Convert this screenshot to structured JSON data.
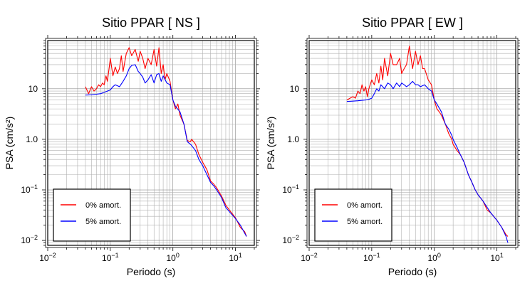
{
  "chart_data": [
    {
      "type": "line",
      "title": "Sitio PPAR [ NS ]",
      "xlabel": "Periodo (s)",
      "ylabel": "PSA (cm/s²)",
      "x_scale": "log",
      "y_scale": "log",
      "xlim": [
        0.01,
        20
      ],
      "ylim": [
        0.008,
        90
      ],
      "x_ticks": [
        {
          "value": 0.01,
          "base": "10",
          "exp": "−2"
        },
        {
          "value": 0.1,
          "base": "10",
          "exp": "−1"
        },
        {
          "value": 1,
          "base": "10",
          "exp": "0"
        },
        {
          "value": 10,
          "base": "10",
          "exp": "1"
        }
      ],
      "y_ticks": [
        {
          "value": 0.01,
          "base": "10",
          "exp": "−2"
        },
        {
          "value": 0.1,
          "base": "10",
          "exp": "−1"
        },
        {
          "value": 1,
          "base": "1.0",
          "exp": ""
        },
        {
          "value": 10,
          "base": "10",
          "exp": ""
        }
      ],
      "grid": true,
      "legend_position": "bottom-left",
      "series": [
        {
          "name": "0% amort.",
          "color": "#ff0000",
          "x": [
            0.04,
            0.045,
            0.05,
            0.055,
            0.06,
            0.065,
            0.07,
            0.075,
            0.08,
            0.085,
            0.09,
            0.1,
            0.11,
            0.12,
            0.13,
            0.14,
            0.15,
            0.16,
            0.18,
            0.2,
            0.22,
            0.25,
            0.28,
            0.3,
            0.33,
            0.36,
            0.4,
            0.45,
            0.5,
            0.55,
            0.6,
            0.65,
            0.7,
            0.75,
            0.8,
            0.9,
            1.0,
            1.1,
            1.2,
            1.3,
            1.5,
            1.7,
            1.9,
            2.0,
            2.3,
            2.6,
            3.0,
            3.5,
            4.0,
            4.5,
            5.0,
            6.0,
            7.0,
            8.0,
            10.0,
            12.0,
            14.0,
            15.0
          ],
          "y": [
            11,
            8,
            11,
            9,
            10,
            12,
            11,
            13,
            12,
            18,
            14,
            40,
            18,
            27,
            20,
            25,
            45,
            22,
            50,
            65,
            45,
            60,
            35,
            55,
            40,
            25,
            40,
            30,
            60,
            28,
            65,
            20,
            30,
            15,
            20,
            14,
            6,
            4,
            5,
            3,
            2,
            0.95,
            0.9,
            1.0,
            0.8,
            0.5,
            0.35,
            0.25,
            0.15,
            0.13,
            0.11,
            0.075,
            0.05,
            0.04,
            0.028,
            0.018,
            0.015,
            0.012
          ]
        },
        {
          "name": "5% amort.",
          "color": "#0000ff",
          "x": [
            0.04,
            0.05,
            0.06,
            0.07,
            0.08,
            0.09,
            0.1,
            0.11,
            0.12,
            0.14,
            0.16,
            0.18,
            0.2,
            0.22,
            0.25,
            0.28,
            0.3,
            0.33,
            0.36,
            0.4,
            0.45,
            0.5,
            0.55,
            0.6,
            0.65,
            0.7,
            0.8,
            0.9,
            1.0,
            1.1,
            1.3,
            1.5,
            1.7,
            1.9,
            2.0,
            2.3,
            2.6,
            3.0,
            3.5,
            4.0,
            4.5,
            5.0,
            6.0,
            7.0,
            8.0,
            10.0,
            12.0,
            14.0,
            15.0
          ],
          "y": [
            7.5,
            7.6,
            7.8,
            8,
            8.5,
            9,
            9.5,
            11,
            12,
            11,
            14,
            18,
            25,
            29,
            30,
            22,
            20,
            17,
            13,
            15,
            19,
            13,
            19,
            20,
            14,
            18,
            13,
            12,
            6,
            4.5,
            3.5,
            2,
            0.9,
            0.8,
            0.75,
            0.6,
            0.4,
            0.3,
            0.2,
            0.14,
            0.12,
            0.1,
            0.07,
            0.045,
            0.037,
            0.027,
            0.02,
            0.014,
            0.012
          ]
        }
      ]
    },
    {
      "type": "line",
      "title": "Sitio PPAR [ EW ]",
      "xlabel": "Periodo (s)",
      "ylabel": "PSA (cm/s²)",
      "x_scale": "log",
      "y_scale": "log",
      "xlim": [
        0.01,
        20
      ],
      "ylim": [
        0.008,
        90
      ],
      "x_ticks": [
        {
          "value": 0.01,
          "base": "10",
          "exp": "−2"
        },
        {
          "value": 0.1,
          "base": "10",
          "exp": "−1"
        },
        {
          "value": 1,
          "base": "10",
          "exp": "0"
        },
        {
          "value": 10,
          "base": "10",
          "exp": "1"
        }
      ],
      "y_ticks": [
        {
          "value": 0.01,
          "base": "10",
          "exp": "−2"
        },
        {
          "value": 0.1,
          "base": "10",
          "exp": "−1"
        },
        {
          "value": 1,
          "base": "1.0",
          "exp": ""
        },
        {
          "value": 10,
          "base": "10",
          "exp": ""
        }
      ],
      "grid": true,
      "legend_position": "bottom-left",
      "series": [
        {
          "name": "0% amort.",
          "color": "#ff0000",
          "x": [
            0.04,
            0.045,
            0.05,
            0.055,
            0.06,
            0.065,
            0.07,
            0.075,
            0.08,
            0.085,
            0.09,
            0.1,
            0.11,
            0.12,
            0.13,
            0.14,
            0.15,
            0.16,
            0.18,
            0.2,
            0.22,
            0.25,
            0.28,
            0.3,
            0.33,
            0.36,
            0.4,
            0.45,
            0.5,
            0.55,
            0.6,
            0.65,
            0.7,
            0.8,
            0.9,
            1.0,
            1.1,
            1.2,
            1.3,
            1.5,
            1.7,
            1.9,
            2.0,
            2.3,
            2.6,
            3.0,
            3.5,
            4.0,
            4.5,
            5.0,
            6.0,
            7.0,
            8.0,
            10.0,
            12.0,
            14.0,
            15.0
          ],
          "y": [
            6,
            6.5,
            7,
            6.5,
            9,
            8,
            12,
            9,
            11,
            7,
            10,
            15,
            12,
            20,
            13,
            28,
            15,
            40,
            18,
            50,
            30,
            30,
            40,
            20,
            25,
            30,
            70,
            25,
            55,
            30,
            45,
            25,
            25,
            15,
            12,
            6,
            4,
            3.5,
            3,
            2,
            1.3,
            1.0,
            0.8,
            0.6,
            0.5,
            0.35,
            0.2,
            0.14,
            0.1,
            0.08,
            0.06,
            0.04,
            0.035,
            0.025,
            0.018,
            0.013,
            0.012
          ]
        },
        {
          "name": "5% amort.",
          "color": "#0000ff",
          "x": [
            0.04,
            0.05,
            0.06,
            0.07,
            0.08,
            0.09,
            0.1,
            0.11,
            0.12,
            0.13,
            0.14,
            0.16,
            0.18,
            0.2,
            0.22,
            0.25,
            0.28,
            0.3,
            0.33,
            0.36,
            0.4,
            0.45,
            0.5,
            0.55,
            0.6,
            0.7,
            0.8,
            0.9,
            1.0,
            1.1,
            1.3,
            1.5,
            1.7,
            1.9,
            2.0,
            2.3,
            2.6,
            3.0,
            3.5,
            4.0,
            4.5,
            5.0,
            6.0,
            7.0,
            8.0,
            10.0,
            12.0,
            14.0,
            15.0
          ],
          "y": [
            5.6,
            5.7,
            5.8,
            5.9,
            6.0,
            6.2,
            6.5,
            8,
            10,
            9,
            12,
            10,
            13,
            12,
            10,
            13,
            11,
            13,
            12,
            11,
            12,
            14,
            12,
            12,
            11,
            12,
            10,
            9,
            6,
            5,
            3.5,
            2,
            1.6,
            1.2,
            1.0,
            0.7,
            0.5,
            0.35,
            0.2,
            0.14,
            0.1,
            0.08,
            0.06,
            0.045,
            0.035,
            0.025,
            0.018,
            0.012,
            0.009
          ]
        }
      ]
    }
  ]
}
